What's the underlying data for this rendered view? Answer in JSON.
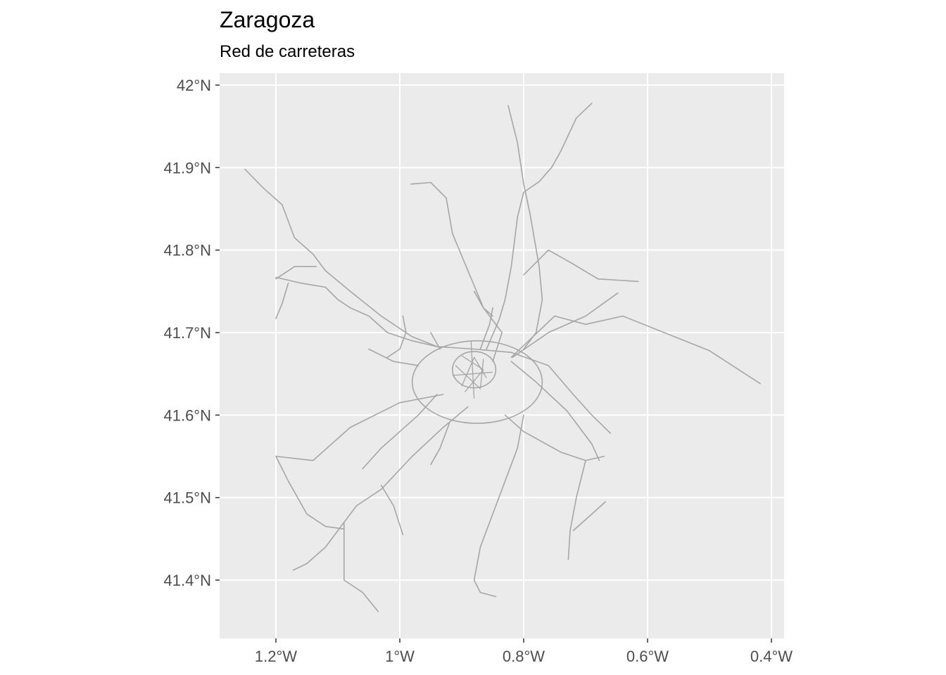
{
  "title": "Zaragoza",
  "subtitle": "Red de carreteras",
  "x_ticks": [
    {
      "value": -1.2,
      "label": "1.2°W"
    },
    {
      "value": -1.0,
      "label": "1°W"
    },
    {
      "value": -0.8,
      "label": "0.8°W"
    },
    {
      "value": -0.6,
      "label": "0.6°W"
    },
    {
      "value": -0.4,
      "label": "0.4°W"
    }
  ],
  "y_ticks": [
    {
      "value": 42.0,
      "label": "42°N"
    },
    {
      "value": 41.9,
      "label": "41.9°N"
    },
    {
      "value": 41.8,
      "label": "41.8°N"
    },
    {
      "value": 41.7,
      "label": "41.7°N"
    },
    {
      "value": 41.6,
      "label": "41.6°N"
    },
    {
      "value": 41.5,
      "label": "41.5°N"
    },
    {
      "value": 41.4,
      "label": "41.4°N"
    }
  ],
  "colors": {
    "panel": "#ebebeb",
    "grid": "#ffffff",
    "road": "#a6a6a6",
    "tick": "#333333"
  },
  "roads": [
    [
      [
        -1.25,
        41.898
      ],
      [
        -1.22,
        41.875
      ],
      [
        -1.19,
        41.855
      ],
      [
        -1.17,
        41.815
      ],
      [
        -1.14,
        41.795
      ],
      [
        -1.12,
        41.775
      ],
      [
        -1.08,
        41.75
      ],
      [
        -1.03,
        41.72
      ],
      [
        -0.98,
        41.695
      ],
      [
        -0.94,
        41.683
      ],
      [
        -0.88,
        41.68
      ],
      [
        -0.82,
        41.676
      ],
      [
        -0.76,
        41.66
      ],
      [
        -0.72,
        41.625
      ],
      [
        -0.69,
        41.6
      ],
      [
        -0.66,
        41.578
      ]
    ],
    [
      [
        -0.982,
        41.88
      ],
      [
        -0.95,
        41.882
      ],
      [
        -0.925,
        41.863
      ],
      [
        -0.915,
        41.82
      ],
      [
        -0.89,
        41.775
      ],
      [
        -0.865,
        41.73
      ],
      [
        -0.835,
        41.7
      ],
      [
        -0.85,
        41.665
      ]
    ],
    [
      [
        -0.825,
        41.975
      ],
      [
        -0.81,
        41.93
      ],
      [
        -0.8,
        41.88
      ],
      [
        -0.79,
        41.845
      ],
      [
        -0.775,
        41.78
      ],
      [
        -0.77,
        41.74
      ],
      [
        -0.78,
        41.7
      ],
      [
        -0.8,
        41.68
      ]
    ],
    [
      [
        -0.69,
        41.978
      ],
      [
        -0.715,
        41.96
      ],
      [
        -0.74,
        41.92
      ],
      [
        -0.755,
        41.9
      ],
      [
        -0.775,
        41.883
      ],
      [
        -0.8,
        41.87
      ],
      [
        -0.81,
        41.84
      ],
      [
        -0.815,
        41.81
      ],
      [
        -0.82,
        41.78
      ],
      [
        -0.83,
        41.74
      ],
      [
        -0.84,
        41.715
      ],
      [
        -0.86,
        41.68
      ]
    ],
    [
      [
        -0.8,
        41.77
      ],
      [
        -0.76,
        41.8
      ],
      [
        -0.72,
        41.783
      ],
      [
        -0.68,
        41.765
      ],
      [
        -0.615,
        41.762
      ]
    ],
    [
      [
        -0.82,
        41.67
      ],
      [
        -0.75,
        41.72
      ],
      [
        -0.7,
        41.71
      ],
      [
        -0.64,
        41.72
      ],
      [
        -0.5,
        41.678
      ],
      [
        -0.418,
        41.638
      ]
    ],
    [
      [
        -0.818,
        41.67
      ],
      [
        -0.76,
        41.7
      ],
      [
        -0.7,
        41.72
      ],
      [
        -0.648,
        41.748
      ]
    ],
    [
      [
        -0.82,
        41.665
      ],
      [
        -0.78,
        41.64
      ],
      [
        -0.73,
        41.605
      ],
      [
        -0.69,
        41.565
      ],
      [
        -0.678,
        41.545
      ]
    ],
    [
      [
        -0.83,
        41.6
      ],
      [
        -0.8,
        41.58
      ],
      [
        -0.74,
        41.555
      ],
      [
        -0.7,
        41.545
      ],
      [
        -0.67,
        41.55
      ]
    ],
    [
      [
        -0.7,
        41.545
      ],
      [
        -0.715,
        41.5
      ],
      [
        -0.725,
        41.46
      ],
      [
        -0.728,
        41.425
      ]
    ],
    [
      [
        -0.72,
        41.46
      ],
      [
        -0.69,
        41.48
      ],
      [
        -0.668,
        41.495
      ]
    ],
    [
      [
        -0.8,
        41.6
      ],
      [
        -0.81,
        41.56
      ],
      [
        -0.83,
        41.52
      ],
      [
        -0.85,
        41.48
      ],
      [
        -0.87,
        41.44
      ],
      [
        -0.88,
        41.4
      ],
      [
        -0.87,
        41.385
      ],
      [
        -0.845,
        41.38
      ]
    ],
    [
      [
        -0.89,
        41.61
      ],
      [
        -0.93,
        41.585
      ],
      [
        -0.98,
        41.55
      ],
      [
        -1.03,
        41.51
      ],
      [
        -1.07,
        41.49
      ],
      [
        -1.09,
        41.47
      ],
      [
        -1.12,
        41.44
      ],
      [
        -1.15,
        41.42
      ],
      [
        -1.172,
        41.412
      ]
    ],
    [
      [
        -0.93,
        41.625
      ],
      [
        -1.0,
        41.615
      ],
      [
        -1.08,
        41.585
      ],
      [
        -1.14,
        41.545
      ],
      [
        -1.2,
        41.55
      ]
    ],
    [
      [
        -1.2,
        41.55
      ],
      [
        -1.18,
        41.52
      ],
      [
        -1.15,
        41.48
      ],
      [
        -1.12,
        41.465
      ],
      [
        -1.09,
        41.462
      ]
    ],
    [
      [
        -1.09,
        41.47
      ],
      [
        -1.09,
        41.42
      ],
      [
        -1.09,
        41.4
      ],
      [
        -1.06,
        41.385
      ],
      [
        -1.035,
        41.362
      ]
    ],
    [
      [
        -1.03,
        41.515
      ],
      [
        -1.01,
        41.49
      ],
      [
        -0.995,
        41.455
      ]
    ],
    [
      [
        -1.2,
        41.767
      ],
      [
        -1.16,
        41.76
      ],
      [
        -1.12,
        41.755
      ],
      [
        -1.1,
        41.74
      ],
      [
        -1.08,
        41.73
      ],
      [
        -1.05,
        41.72
      ],
      [
        -1.02,
        41.7
      ],
      [
        -0.98,
        41.69
      ],
      [
        -0.94,
        41.683
      ]
    ],
    [
      [
        -1.2,
        41.765
      ],
      [
        -1.17,
        41.78
      ],
      [
        -1.135,
        41.78
      ]
    ],
    [
      [
        -1.18,
        41.76
      ],
      [
        -1.19,
        41.735
      ],
      [
        -1.2,
        41.717
      ]
    ],
    [
      [
        -1.05,
        41.68
      ],
      [
        -1.01,
        41.665
      ],
      [
        -0.97,
        41.66
      ]
    ],
    [
      [
        -1.02,
        41.67
      ],
      [
        -1.0,
        41.68
      ],
      [
        -0.99,
        41.7
      ],
      [
        -0.995,
        41.72
      ]
    ],
    [
      [
        -0.87,
        41.68
      ],
      [
        -0.855,
        41.71
      ],
      [
        -0.85,
        41.73
      ]
    ],
    [
      [
        -0.88,
        41.75
      ],
      [
        -0.865,
        41.73
      ],
      [
        -0.85,
        41.72
      ]
    ],
    [
      [
        -0.95,
        41.7
      ],
      [
        -0.935,
        41.68
      ]
    ],
    [
      [
        -0.94,
        41.625
      ],
      [
        -0.97,
        41.6
      ],
      [
        -1.0,
        41.58
      ],
      [
        -1.03,
        41.56
      ],
      [
        -1.06,
        41.535
      ]
    ],
    [
      [
        -0.92,
        41.59
      ],
      [
        -0.935,
        41.56
      ],
      [
        -0.95,
        41.54
      ]
    ]
  ],
  "ring_roads": [
    {
      "cx": -0.875,
      "cy": 41.64,
      "rx": 0.105,
      "ry": 0.05
    },
    {
      "cx": -0.88,
      "cy": 41.655,
      "rx": 0.035,
      "ry": 0.022
    }
  ],
  "city_mesh": [
    [
      [
        -0.9,
        41.635
      ],
      [
        -0.88,
        41.67
      ],
      [
        -0.86,
        41.645
      ]
    ],
    [
      [
        -0.91,
        41.66
      ],
      [
        -0.87,
        41.632
      ],
      [
        -0.865,
        41.668
      ]
    ],
    [
      [
        -0.895,
        41.628
      ],
      [
        -0.865,
        41.655
      ],
      [
        -0.9,
        41.672
      ]
    ],
    [
      [
        -0.885,
        41.69
      ],
      [
        -0.88,
        41.62
      ]
    ],
    [
      [
        -0.915,
        41.648
      ],
      [
        -0.85,
        41.652
      ]
    ]
  ]
}
